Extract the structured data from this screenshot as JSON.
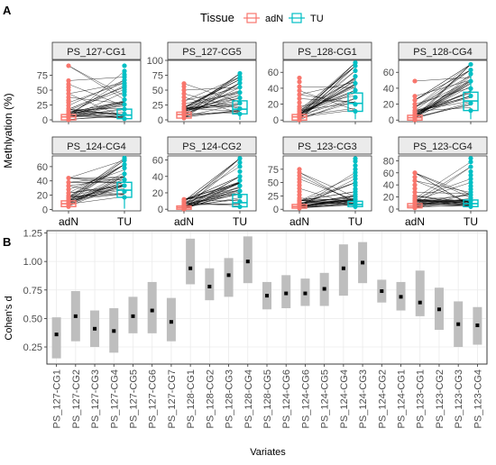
{
  "panel_a": {
    "label": "A",
    "legend": {
      "title": "Tissue",
      "entries": [
        {
          "name": "adN",
          "color": "#F8766D"
        },
        {
          "name": "TU",
          "color": "#00BFC4"
        }
      ]
    },
    "ylabel": "Methlyation (%)"
  },
  "panel_b": {
    "label": "B",
    "ylabel": "Cohen's d",
    "xlabel": "Variates"
  },
  "chart_data": [
    {
      "type": "box",
      "subtype": "paired-box-with-lines",
      "facets": [
        {
          "title": "PS_127-CG1",
          "y_ticks": [
            0,
            25,
            50,
            75
          ],
          "ylim": [
            -3,
            100
          ],
          "adN": {
            "q1": 0,
            "median": 5,
            "q3": 9,
            "whisker_high": 19,
            "outliers": [
              24,
              29,
              33,
              38,
              44,
              50,
              55,
              60,
              66,
              91
            ]
          },
          "TU": {
            "q1": 2,
            "median": 8,
            "q3": 18,
            "whisker_high": 42,
            "outliers": [
              47,
              51,
              55,
              58,
              62,
              67,
              72,
              76,
              82,
              91
            ]
          }
        },
        {
          "title": "PS_127-CG5",
          "y_ticks": [
            0,
            25,
            50,
            75,
            100
          ],
          "ylim": [
            -3,
            100
          ],
          "adN": {
            "q1": 3,
            "median": 9,
            "q3": 13,
            "whisker_high": 22,
            "outliers": [
              27,
              32,
              38,
              44,
              50,
              56,
              61
            ]
          },
          "TU": {
            "q1": 10,
            "median": 18,
            "q3": 32,
            "whisker_high": 55,
            "outliers": [
              62,
              68,
              72,
              78
            ]
          }
        },
        {
          "title": "PS_128-CG1",
          "y_ticks": [
            0,
            20,
            40,
            60
          ],
          "ylim": [
            -2,
            75
          ],
          "adN": {
            "q1": 0,
            "median": 4,
            "q3": 7,
            "whisker_high": 14,
            "outliers": [
              17,
              22,
              27,
              32,
              37,
              42,
              48,
              53
            ]
          },
          "TU": {
            "q1": 11,
            "median": 21,
            "q3": 34,
            "whisker_high": 55,
            "outliers": [
              62,
              68,
              72
            ]
          }
        },
        {
          "title": "PS_128-CG4",
          "y_ticks": [
            0,
            20,
            40,
            60
          ],
          "ylim": [
            -2,
            75
          ],
          "adN": {
            "q1": 0,
            "median": 3,
            "q3": 6,
            "whisker_high": 12,
            "outliers": [
              16,
              20,
              25,
              30,
              49
            ]
          },
          "TU": {
            "q1": 12,
            "median": 24,
            "q3": 35,
            "whisker_high": 58,
            "outliers": [
              63,
              70
            ]
          }
        },
        {
          "title": "PS_124-CG4",
          "y_ticks": [
            0,
            20,
            40,
            60
          ],
          "ylim": [
            -2,
            75
          ],
          "adN": {
            "q1": 4,
            "median": 8,
            "q3": 12,
            "whisker_high": 19,
            "outliers": [
              23,
              28,
              33,
              38,
              44
            ]
          },
          "TU": {
            "q1": 17,
            "median": 27,
            "q3": 38,
            "whisker_high": 58,
            "outliers": [
              63,
              69,
              72
            ]
          }
        },
        {
          "title": "PS_124-CG2",
          "y_ticks": [
            0,
            20,
            40,
            60
          ],
          "ylim": [
            -2,
            65
          ],
          "adN": {
            "q1": 0,
            "median": 2,
            "q3": 4,
            "whisker_high": 8,
            "outliers": [
              10,
              12
            ]
          },
          "TU": {
            "q1": 3,
            "median": 8,
            "q3": 18,
            "whisker_high": 35,
            "outliers": [
              40,
              46,
              52,
              57,
              62
            ]
          }
        },
        {
          "title": "PS_123-CG3",
          "y_ticks": [
            0,
            25,
            50,
            75
          ],
          "ylim": [
            -3,
            100
          ],
          "adN": {
            "q1": 2,
            "median": 5,
            "q3": 9,
            "whisker_high": 17,
            "outliers": [
              21,
              27,
              33,
              39,
              45,
              51,
              57,
              63,
              69,
              75
            ]
          },
          "TU": {
            "q1": 5,
            "median": 9,
            "q3": 15,
            "whisker_high": 28,
            "outliers": [
              33,
              38,
              45,
              50,
              57,
              63,
              69,
              75,
              82,
              90,
              95
            ]
          }
        },
        {
          "title": "PS_123-CG4",
          "y_ticks": [
            0,
            20,
            40,
            60,
            80
          ],
          "ylim": [
            -3,
            88
          ],
          "adN": {
            "q1": 2,
            "median": 5,
            "q3": 9,
            "whisker_high": 18,
            "outliers": [
              22,
              28,
              34,
              40,
              47,
              53,
              60
            ]
          },
          "TU": {
            "q1": 4,
            "median": 9,
            "q3": 15,
            "whisker_high": 28,
            "outliers": [
              33,
              38,
              44,
              50,
              56,
              62,
              70,
              78,
              84
            ]
          }
        }
      ],
      "x_categories": [
        "adN",
        "TU"
      ]
    },
    {
      "type": "scatter",
      "subtype": "point-with-interval",
      "categories": [
        "PS_127-CG1",
        "PS_127-CG2",
        "PS_127-CG3",
        "PS_127-CG4",
        "PS_127-CG5",
        "PS_127-CG6",
        "PS_127-CG7",
        "PS_128-CG1",
        "PS_128-CG2",
        "PS_128-CG3",
        "PS_128-CG4",
        "PS_128-CG5",
        "PS_124-CG6",
        "PS_124-CG6",
        "PS_124-CG5",
        "PS_124-CG4",
        "PS_124-CG3",
        "PS_124-CG2",
        "PS_124-CG1",
        "PS_123-CG1",
        "PS_123-CG2",
        "PS_123-CG3",
        "PS_123-CG4"
      ],
      "values": [
        0.36,
        0.52,
        0.41,
        0.39,
        0.52,
        0.57,
        0.47,
        0.94,
        0.78,
        0.88,
        1.0,
        0.7,
        0.72,
        0.72,
        0.76,
        0.94,
        0.99,
        0.74,
        0.69,
        0.64,
        0.58,
        0.45,
        0.44
      ],
      "lower": [
        0.15,
        0.3,
        0.25,
        0.2,
        0.37,
        0.37,
        0.3,
        0.8,
        0.66,
        0.69,
        0.81,
        0.58,
        0.59,
        0.61,
        0.61,
        0.7,
        0.81,
        0.64,
        0.57,
        0.52,
        0.4,
        0.25,
        0.27
      ],
      "upper": [
        0.51,
        0.74,
        0.57,
        0.59,
        0.69,
        0.82,
        0.68,
        1.2,
        0.94,
        1.03,
        1.22,
        0.82,
        0.88,
        0.85,
        0.9,
        1.15,
        1.17,
        0.84,
        0.82,
        0.92,
        0.77,
        0.65,
        0.6
      ],
      "y_ticks": [
        0.25,
        0.5,
        0.75,
        1.0,
        1.25
      ],
      "y_tick_labels": [
        "0.25",
        "0.50",
        "0.75",
        "1.00",
        "1.25"
      ],
      "ylim": [
        0.1,
        1.27
      ],
      "grid": true,
      "ylabel": "Cohen's d",
      "xlabel": "Variates"
    }
  ]
}
